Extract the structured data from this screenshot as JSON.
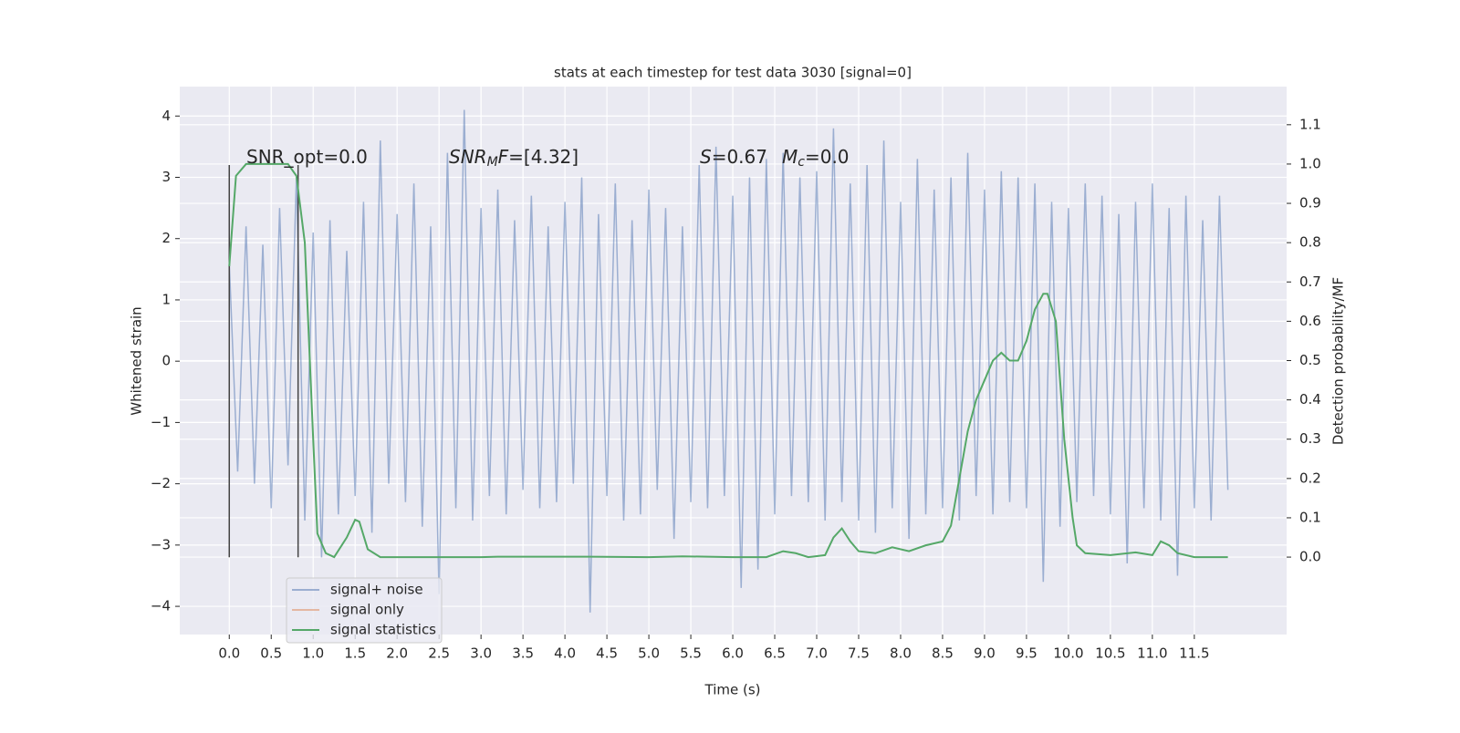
{
  "chart_data": {
    "type": "line",
    "title": "stats at each timestep for test data 3030 [signal=0]",
    "xlabel": "Time (s)",
    "ylabel": "Whitened strain",
    "y2label": "Detection probability/MF",
    "xlim": [
      -0.59,
      12.6
    ],
    "ylim": [
      -4.46,
      4.48
    ],
    "y2lim": [
      -0.197,
      1.197
    ],
    "grid": true,
    "legend": "lower left",
    "xticks": [
      {
        "value": 0,
        "label": "0.0"
      },
      0.5,
      {
        "value": 1,
        "label": "1.0"
      },
      1.5,
      {
        "value": 2,
        "label": "2.0"
      },
      2.5,
      {
        "value": 3,
        "label": "3.0"
      },
      3.5,
      {
        "value": 4,
        "label": "4.0"
      },
      4.5,
      {
        "value": 5,
        "label": "5.0"
      },
      5.5,
      {
        "value": 6,
        "label": "6.0"
      },
      6.5,
      {
        "value": 7,
        "label": "7.0"
      },
      7.5,
      {
        "value": 8,
        "label": "8.0"
      },
      8.5,
      {
        "value": 9,
        "label": "9.0"
      },
      9.5,
      {
        "value": 10,
        "label": "10.0"
      },
      10.5,
      {
        "value": 11,
        "label": "11.0"
      },
      11.5
    ],
    "yticks": [
      {
        "value": -4,
        "label": "−4"
      },
      {
        "value": -3,
        "label": "−3"
      },
      {
        "value": -2,
        "label": "−2"
      },
      {
        "value": -1,
        "label": "−1"
      },
      0,
      1,
      2,
      3,
      4
    ],
    "y2ticks": [
      {
        "value": 0,
        "label": "0.0"
      },
      0.1,
      0.2,
      0.3,
      0.4,
      0.5,
      0.6,
      0.7,
      0.8,
      0.9,
      {
        "value": 1,
        "label": "1.0"
      },
      1.1
    ],
    "vlines": {
      "x": [
        0,
        0.82
      ],
      "ymin": -3.2,
      "ymax": 3.2,
      "color": "#444444"
    },
    "annotations": [
      [
        {
          "text": "SNR_opt=0.0"
        }
      ],
      [
        {
          "text": "SNR",
          "style": "italic"
        },
        {
          "text": "M",
          "style": "italic-sub"
        },
        {
          "text": "F",
          "style": "italic"
        },
        {
          "text": "=[4.32]"
        }
      ],
      [
        {
          "text": "S",
          "style": "italic"
        },
        {
          "text": "=0.67"
        },
        {
          "text": "M",
          "style": "italic"
        },
        {
          "text": "c",
          "style": "italic-sub"
        },
        {
          "text": "=0.0"
        }
      ]
    ],
    "series": [
      {
        "name": "signal+ noise",
        "color": "#4c72b0",
        "x": [
          0.0,
          0.1,
          0.2,
          0.3,
          0.4,
          0.5,
          0.6,
          0.7,
          0.8,
          0.9,
          1.0,
          1.1,
          1.2,
          1.3,
          1.4,
          1.5,
          1.6,
          1.7,
          1.8,
          1.9,
          2.0,
          2.1,
          2.2,
          2.3,
          2.4,
          2.5,
          2.6,
          2.7,
          2.8,
          2.9,
          3.0,
          3.1,
          3.2,
          3.3,
          3.4,
          3.5,
          3.6,
          3.7,
          3.8,
          3.9,
          4.0,
          4.1,
          4.2,
          4.3,
          4.4,
          4.5,
          4.6,
          4.7,
          4.8,
          4.9,
          5.0,
          5.1,
          5.2,
          5.3,
          5.4,
          5.5,
          5.6,
          5.7,
          5.8,
          5.9,
          6.0,
          6.1,
          6.2,
          6.3,
          6.4,
          6.5,
          6.6,
          6.7,
          6.8,
          6.9,
          7.0,
          7.1,
          7.2,
          7.3,
          7.4,
          7.5,
          7.6,
          7.7,
          7.8,
          7.9,
          8.0,
          8.1,
          8.2,
          8.3,
          8.4,
          8.5,
          8.6,
          8.7,
          8.8,
          8.9,
          9.0,
          9.1,
          9.2,
          9.3,
          9.4,
          9.5,
          9.6,
          9.7,
          9.8,
          9.9,
          10.0,
          10.1,
          10.2,
          10.3,
          10.4,
          10.5,
          10.6,
          10.7,
          10.8,
          10.9,
          11.0,
          11.1,
          11.2,
          11.3,
          11.4,
          11.5,
          11.6,
          11.7,
          11.8,
          11.9
        ],
        "values": [
          1.6,
          -1.8,
          2.2,
          -2.0,
          1.9,
          -2.4,
          2.5,
          -1.7,
          3.0,
          -2.6,
          2.1,
          -3.2,
          2.3,
          -2.5,
          1.8,
          -2.2,
          2.6,
          -2.8,
          3.6,
          -2.0,
          2.4,
          -2.3,
          2.9,
          -2.7,
          2.2,
          -3.8,
          3.4,
          -2.4,
          4.1,
          -2.6,
          2.5,
          -2.2,
          2.8,
          -2.5,
          2.3,
          -2.1,
          2.7,
          -2.4,
          2.2,
          -2.3,
          2.6,
          -2.0,
          3.0,
          -4.1,
          2.4,
          -2.2,
          2.9,
          -2.6,
          2.3,
          -2.5,
          2.8,
          -2.1,
          2.5,
          -2.9,
          2.2,
          -2.3,
          3.2,
          -2.4,
          3.5,
          -2.2,
          2.7,
          -3.7,
          3.0,
          -3.4,
          3.3,
          -2.5,
          3.4,
          -2.2,
          3.0,
          -2.3,
          3.1,
          -2.6,
          3.8,
          -2.3,
          2.9,
          -2.6,
          3.2,
          -2.8,
          3.6,
          -2.4,
          2.6,
          -2.9,
          3.3,
          -2.5,
          2.8,
          -2.4,
          3.0,
          -2.6,
          3.4,
          -2.2,
          2.8,
          -2.5,
          3.1,
          -2.3,
          3.0,
          -2.4,
          2.9,
          -3.6,
          2.6,
          -2.7,
          2.5,
          -2.3,
          2.9,
          -2.2,
          2.7,
          -2.5,
          2.4,
          -3.3,
          2.6,
          -2.4,
          2.9,
          -2.6,
          2.5,
          -3.5,
          2.7,
          -2.4,
          2.3,
          -2.6,
          2.7,
          -2.1
        ]
      },
      {
        "name": "signal only",
        "color": "#dd8452"
      },
      {
        "name": "signal statistics",
        "color": "#55a868",
        "axis": "y2",
        "x": [
          0.0,
          0.08,
          0.2,
          0.5,
          0.7,
          0.8,
          0.9,
          1.0,
          1.05,
          1.15,
          1.25,
          1.4,
          1.5,
          1.55,
          1.65,
          1.8,
          2.0,
          3.0,
          3.2,
          4.3,
          5.0,
          5.4,
          6.0,
          6.4,
          6.6,
          6.75,
          6.9,
          7.1,
          7.2,
          7.3,
          7.4,
          7.5,
          7.7,
          7.9,
          8.1,
          8.3,
          8.5,
          8.6,
          8.7,
          8.8,
          8.9,
          9.0,
          9.1,
          9.2,
          9.3,
          9.4,
          9.5,
          9.6,
          9.7,
          9.75,
          9.85,
          9.95,
          10.05,
          10.1,
          10.2,
          10.5,
          10.8,
          11.0,
          11.1,
          11.2,
          11.3,
          11.5,
          11.9
        ],
        "values": [
          0.74,
          0.97,
          1.0,
          1.0,
          1.0,
          0.97,
          0.8,
          0.3,
          0.06,
          0.01,
          0.0,
          0.05,
          0.095,
          0.09,
          0.02,
          0.0,
          0.0,
          0.0,
          0.001,
          0.001,
          0.0,
          0.002,
          0.0,
          0.0,
          0.015,
          0.01,
          0.0,
          0.005,
          0.05,
          0.073,
          0.04,
          0.015,
          0.01,
          0.025,
          0.015,
          0.03,
          0.04,
          0.08,
          0.2,
          0.32,
          0.4,
          0.45,
          0.5,
          0.52,
          0.5,
          0.5,
          0.55,
          0.63,
          0.67,
          0.67,
          0.6,
          0.3,
          0.1,
          0.03,
          0.01,
          0.005,
          0.012,
          0.005,
          0.04,
          0.03,
          0.01,
          0.0,
          0.0
        ]
      }
    ]
  }
}
